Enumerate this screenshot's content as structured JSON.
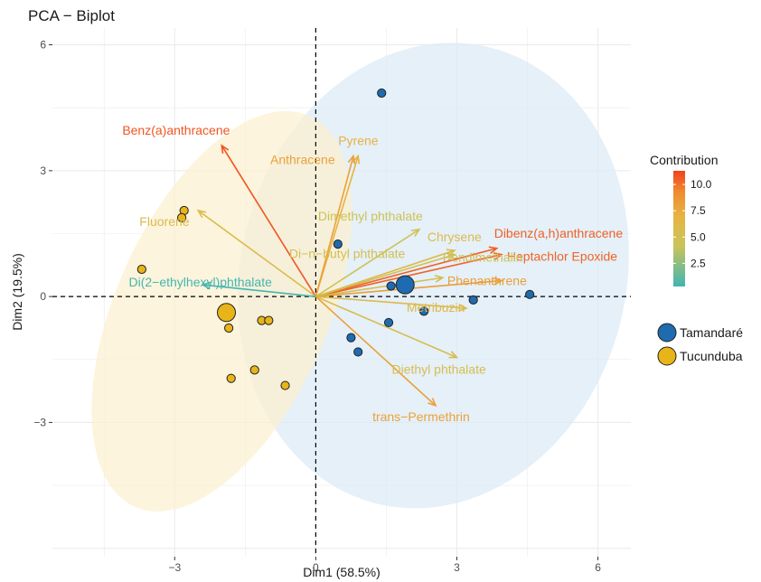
{
  "chart_data": {
    "type": "scatter",
    "title": "PCA − Biplot",
    "xlabel": "Dim1 (58.5%)",
    "ylabel": "Dim2 (19.5%)",
    "xlim": [
      -5.6,
      6.7
    ],
    "ylim": [
      -6.2,
      6.4
    ],
    "xticks": [
      -3,
      0,
      3,
      6
    ],
    "xtick_labels": [
      "−3",
      "0",
      "3",
      "6"
    ],
    "yticks": [
      -3,
      0,
      3,
      6
    ],
    "ytick_labels": [
      "−3",
      "0",
      "3",
      "6"
    ],
    "grid": true,
    "legend_placement": "right",
    "contribution_legend": {
      "title": "Contribution",
      "ticks": [
        10.0,
        7.5,
        5.0,
        2.5
      ],
      "tick_labels": [
        "10.0",
        "7.5",
        "5.0",
        "2.5"
      ],
      "range": [
        0.3,
        11.3
      ],
      "colors": [
        "#40b5b2",
        "#e6c24e",
        "#f08a2e",
        "#f0431e"
      ]
    },
    "groups": [
      {
        "name": "Tamandaré",
        "color": "#1e6bb0",
        "ellipse_color": "#dcebf6",
        "ellipse": {
          "cx": 2.5,
          "cy": 0.5,
          "rx": 4.1,
          "ry": 5.6,
          "angle": 14
        },
        "points": [
          [
            1.4,
            4.85
          ],
          [
            0.47,
            1.25
          ],
          [
            1.6,
            0.25
          ],
          [
            4.55,
            0.05
          ],
          [
            3.35,
            -0.08
          ],
          [
            2.3,
            -0.35
          ],
          [
            1.55,
            -0.62
          ],
          [
            0.75,
            -0.98
          ],
          [
            0.9,
            -1.32
          ]
        ],
        "mean": [
          1.9,
          0.28
        ]
      },
      {
        "name": "Tucunduba",
        "color": "#e8b419",
        "ellipse_color": "#fbf0d0",
        "ellipse": {
          "cx": -2.0,
          "cy": -0.35,
          "rx": 2.25,
          "ry": 5.1,
          "angle": 24
        },
        "points": [
          [
            -2.8,
            2.05
          ],
          [
            -2.85,
            1.88
          ],
          [
            -3.7,
            0.65
          ],
          [
            -1.85,
            -0.75
          ],
          [
            -1.15,
            -0.57
          ],
          [
            -1.0,
            -0.57
          ],
          [
            -1.3,
            -1.75
          ],
          [
            -1.8,
            -1.95
          ],
          [
            -0.65,
            -2.12
          ]
        ],
        "mean": [
          -1.9,
          -0.38
        ]
      }
    ],
    "variables": [
      {
        "name": "Benz(a)anthracene",
        "x": -2.0,
        "y": 3.6,
        "contrib": 10.8
      },
      {
        "name": "Pyrene",
        "x": 0.9,
        "y": 3.35,
        "contrib": 7.0
      },
      {
        "name": "Anthracene",
        "x": 0.8,
        "y": 3.35,
        "contrib": 8.0
      },
      {
        "name": "Dimethyl phthalate",
        "x": 2.2,
        "y": 1.6,
        "contrib": 4.6
      },
      {
        "name": "Chrysene",
        "x": 2.95,
        "y": 1.1,
        "contrib": 6.0
      },
      {
        "name": "Dibenz(a,h)anthracene",
        "x": 3.85,
        "y": 1.15,
        "contrib": 10.5
      },
      {
        "name": "Heptachlor Epoxide",
        "x": 3.95,
        "y": 1.0,
        "contrib": 10.4
      },
      {
        "name": "Di−n−butyl phthalate",
        "x": 2.95,
        "y": 1.0,
        "contrib": 5.0
      },
      {
        "name": "Pendimethalin",
        "x": 2.7,
        "y": 0.45,
        "contrib": 4.8
      },
      {
        "name": "Phenanthrene",
        "x": 3.95,
        "y": 0.38,
        "contrib": 8.2
      },
      {
        "name": "Metribuzin",
        "x": 3.2,
        "y": -0.28,
        "contrib": 6.2
      },
      {
        "name": "Diethyl phthalate",
        "x": 3.0,
        "y": -1.45,
        "contrib": 5.4
      },
      {
        "name": "trans−Permethrin",
        "x": 2.55,
        "y": -2.6,
        "contrib": 8.0
      },
      {
        "name": "Fluorene",
        "x": -2.5,
        "y": 2.05,
        "contrib": 5.8
      },
      {
        "name": "Di(2−ethylhexyl)phthalate",
        "x": -2.4,
        "y": 0.28,
        "contrib": 0.4
      }
    ]
  }
}
